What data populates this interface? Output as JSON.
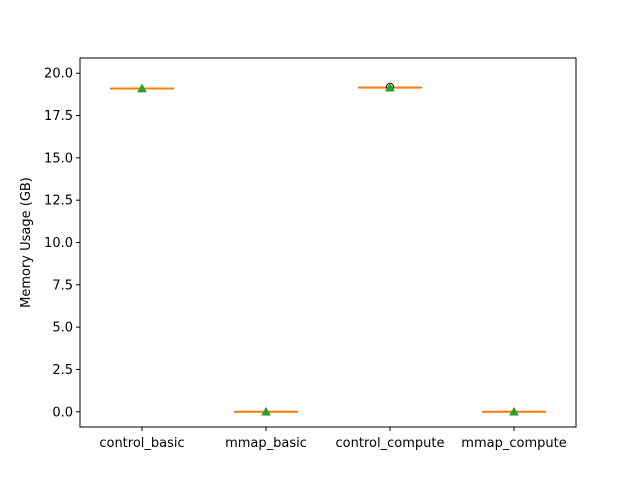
{
  "chart_data": {
    "type": "box",
    "title": "",
    "xlabel": "",
    "ylabel": "Memory Usage (GB)",
    "ylim": [
      -0.9,
      20.9
    ],
    "yticks": [
      0.0,
      2.5,
      5.0,
      7.5,
      10.0,
      12.5,
      15.0,
      17.5,
      20.0
    ],
    "ytick_labels": [
      "0.0",
      "2.5",
      "5.0",
      "7.5",
      "10.0",
      "12.5",
      "15.0",
      "17.5",
      "20.0"
    ],
    "categories": [
      "control_basic",
      "mmap_basic",
      "control_compute",
      "mmap_compute"
    ],
    "boxes": [
      {
        "name": "control_basic",
        "min": 19.1,
        "q1": 19.1,
        "median": 19.1,
        "q3": 19.1,
        "max": 19.1,
        "mean": 19.1,
        "outliers": []
      },
      {
        "name": "mmap_basic",
        "min": 0.0,
        "q1": 0.0,
        "median": 0.0,
        "q3": 0.0,
        "max": 0.0,
        "mean": 0.0,
        "outliers": []
      },
      {
        "name": "control_compute",
        "min": 19.15,
        "q1": 19.15,
        "median": 19.15,
        "q3": 19.15,
        "max": 19.15,
        "mean": 19.15,
        "outliers": [
          19.2
        ]
      },
      {
        "name": "mmap_compute",
        "min": 0.0,
        "q1": 0.0,
        "median": 0.0,
        "q3": 0.0,
        "max": 0.0,
        "mean": 0.0,
        "outliers": []
      }
    ],
    "grid": false,
    "legend": "none",
    "colors": {
      "box": "#000000",
      "median": "#ff7f0e",
      "mean_marker": "#2ca02c",
      "outlier": "#000000",
      "axes": "#000000"
    }
  }
}
